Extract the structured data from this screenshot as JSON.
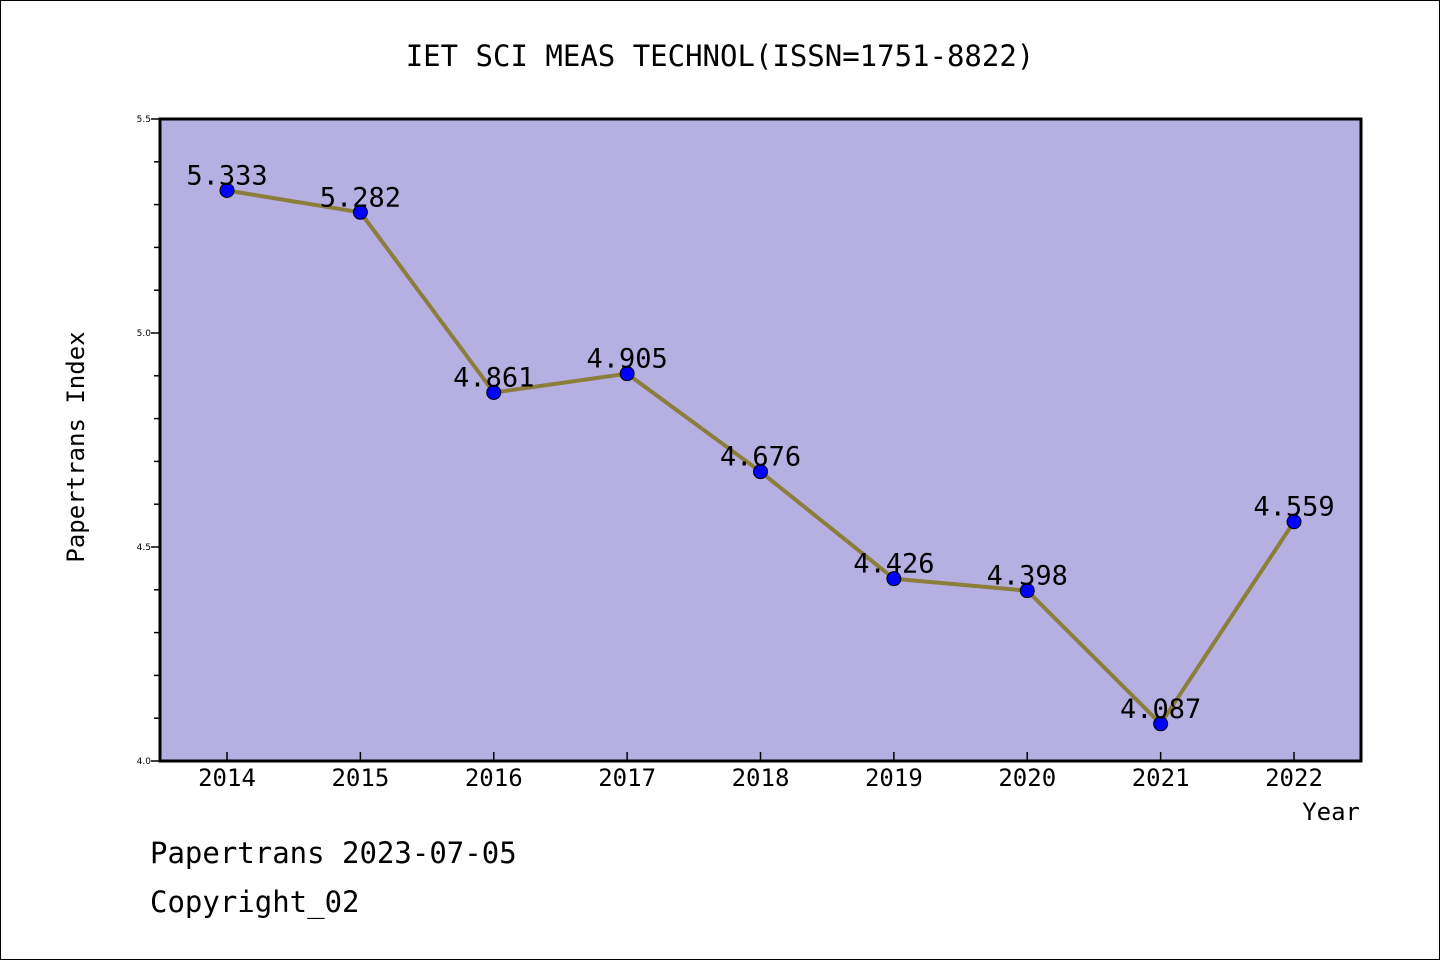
{
  "chart_data": {
    "type": "line",
    "title": "IET SCI MEAS TECHNOL(ISSN=1751-8822)",
    "xlabel": "Year",
    "ylabel": "Papertrans Index",
    "categories": [
      "2014",
      "2015",
      "2016",
      "2017",
      "2018",
      "2019",
      "2020",
      "2021",
      "2022"
    ],
    "values": [
      5.333,
      5.282,
      4.861,
      4.905,
      4.676,
      4.426,
      4.398,
      4.087,
      4.559
    ],
    "data_labels": [
      "5.333",
      "5.282",
      "4.861",
      "4.905",
      "4.676",
      "4.426",
      "4.398",
      "4.087",
      "4.559"
    ],
    "ylim": [
      4.0,
      5.5
    ],
    "y_ticks": [
      "4.0",
      "4.5",
      "5.0",
      "5.5"
    ],
    "grid": false,
    "colors": {
      "plot_background": "#b5afe2",
      "line": "#8b7d3a",
      "marker": "#0000ff"
    }
  },
  "footer": {
    "line1": "Papertrans 2023-07-05",
    "line2": "Copyright_02"
  }
}
